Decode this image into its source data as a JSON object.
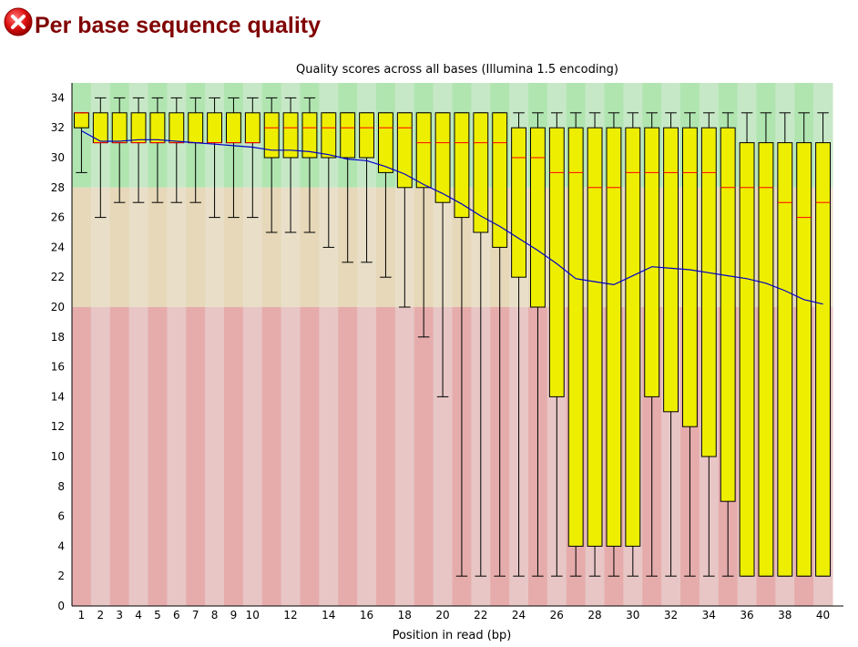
{
  "header": {
    "title": "Per base sequence quality",
    "status_icon": "fail-icon",
    "status": "fail"
  },
  "colors": {
    "zone_good_a": "#b0e5b0",
    "zone_good_b": "#c7e8c6",
    "zone_warn_a": "#e6d8b8",
    "zone_warn_b": "#e9dfc9",
    "zone_bad_a": "#e6acac",
    "zone_bad_b": "#e8c6c6",
    "box_fill": "#eeee00",
    "median": "#ff0000",
    "mean_line": "#0000cc",
    "icon_red": "#cc0000"
  },
  "chart_data": {
    "type": "boxplot",
    "title": "Quality scores across all bases (Illumina 1.5 encoding)",
    "xlabel": "Position in read (bp)",
    "ylabel": "",
    "ylim": [
      0,
      35
    ],
    "yticks": [
      0,
      2,
      4,
      6,
      8,
      10,
      12,
      14,
      16,
      18,
      20,
      22,
      24,
      26,
      28,
      30,
      32,
      34
    ],
    "xticks": [
      1,
      2,
      3,
      4,
      5,
      6,
      7,
      8,
      9,
      10,
      12,
      14,
      16,
      18,
      20,
      22,
      24,
      26,
      28,
      30,
      32,
      34,
      36,
      38,
      40
    ],
    "zones": [
      {
        "name": "good",
        "from": 28,
        "to": 35
      },
      {
        "name": "reasonable",
        "from": 20,
        "to": 28
      },
      {
        "name": "poor",
        "from": 0,
        "to": 20
      }
    ],
    "positions": [
      1,
      2,
      3,
      4,
      5,
      6,
      7,
      8,
      9,
      10,
      11,
      12,
      13,
      14,
      15,
      16,
      17,
      18,
      19,
      20,
      21,
      22,
      23,
      24,
      25,
      26,
      27,
      28,
      29,
      30,
      31,
      32,
      33,
      34,
      35,
      36,
      37,
      38,
      39,
      40
    ],
    "lower_whisker": [
      29,
      26,
      27,
      27,
      27,
      27,
      27,
      26,
      26,
      26,
      25,
      25,
      25,
      24,
      23,
      23,
      22,
      20,
      18,
      14,
      2,
      2,
      2,
      2,
      2,
      2,
      2,
      2,
      2,
      2,
      2,
      2,
      2,
      2,
      2,
      2,
      2,
      2,
      2,
      2
    ],
    "q1": [
      32,
      31,
      31,
      31,
      31,
      31,
      31,
      31,
      31,
      31,
      30,
      30,
      30,
      30,
      30,
      30,
      29,
      28,
      28,
      27,
      26,
      25,
      24,
      22,
      20,
      14,
      4,
      4,
      4,
      4,
      14,
      13,
      12,
      10,
      7,
      2,
      2,
      2,
      2,
      2
    ],
    "median": [
      33,
      31,
      31,
      31,
      31,
      31,
      31,
      31,
      31,
      31,
      32,
      32,
      32,
      32,
      32,
      32,
      32,
      32,
      31,
      31,
      31,
      31,
      31,
      30,
      30,
      29,
      29,
      28,
      28,
      29,
      29,
      29,
      29,
      29,
      28,
      28,
      28,
      27,
      26,
      27
    ],
    "q3": [
      33,
      33,
      33,
      33,
      33,
      33,
      33,
      33,
      33,
      33,
      33,
      33,
      33,
      33,
      33,
      33,
      33,
      33,
      33,
      33,
      33,
      33,
      33,
      32,
      32,
      32,
      32,
      32,
      32,
      32,
      32,
      32,
      32,
      32,
      32,
      31,
      31,
      31,
      31,
      31
    ],
    "upper_whisker": [
      33,
      34,
      34,
      34,
      34,
      34,
      34,
      34,
      34,
      34,
      34,
      34,
      34,
      33,
      33,
      33,
      33,
      33,
      33,
      33,
      33,
      33,
      33,
      33,
      33,
      33,
      33,
      33,
      33,
      33,
      33,
      33,
      33,
      33,
      33,
      33,
      33,
      33,
      33,
      33
    ],
    "mean": [
      31.8,
      31.1,
      31.1,
      31.2,
      31.2,
      31.1,
      31.0,
      30.9,
      30.8,
      30.7,
      30.5,
      30.5,
      30.4,
      30.2,
      29.9,
      29.8,
      29.4,
      28.9,
      28.2,
      27.6,
      26.9,
      26.1,
      25.4,
      24.6,
      23.8,
      22.9,
      21.9,
      21.7,
      21.5,
      22.1,
      22.7,
      22.6,
      22.5,
      22.3,
      22.1,
      21.9,
      21.6,
      21.1,
      20.5,
      20.2
    ]
  }
}
